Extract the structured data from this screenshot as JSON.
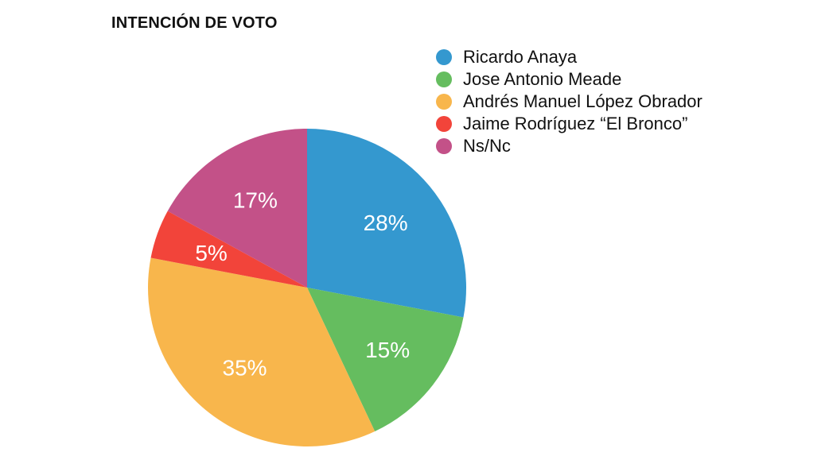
{
  "chart_data": {
    "type": "pie",
    "title": "INTENCIÓN DE VOTO",
    "categories": [
      "Ricardo Anaya",
      "Jose Antonio Meade",
      "Andrés Manuel López Obrador",
      "Jaime Rodríguez “El Bronco”",
      "Ns/Nc"
    ],
    "values": [
      28,
      15,
      35,
      5,
      17
    ],
    "value_labels": [
      "28%",
      "15%",
      "35%",
      "5%",
      "17%"
    ],
    "colors": [
      "#3498cf",
      "#65bd5f",
      "#f8b64c",
      "#f2443a",
      "#c35188"
    ],
    "legend_position": "top-right"
  }
}
